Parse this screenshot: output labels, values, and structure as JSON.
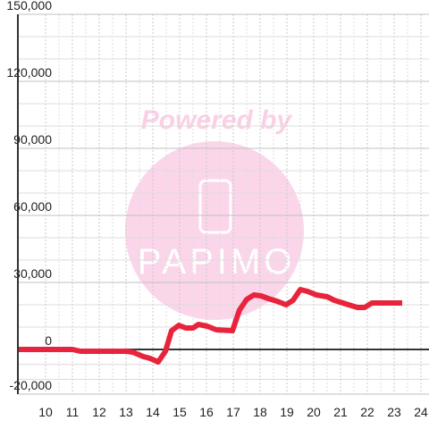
{
  "chart_data": {
    "type": "line",
    "watermark": {
      "title": "Powered by",
      "logo": "PAPIMO"
    },
    "x": [
      9,
      11,
      11.3,
      13,
      13.25,
      13.65,
      13.9,
      14.2,
      14.47,
      14.7,
      14.97,
      15.23,
      15.5,
      15.7,
      16.03,
      16.37,
      16.97,
      17.23,
      17.5,
      17.77,
      18.03,
      18.3,
      18.63,
      18.97,
      19.23,
      19.5,
      19.77,
      20.1,
      20.5,
      20.77,
      21.3,
      21.63,
      21.9,
      22.17,
      23.3
    ],
    "series": [
      {
        "color": "#e8243c",
        "values": [
          0,
          0,
          -800,
          -800,
          -1200,
          -3200,
          -4000,
          -5600,
          -800,
          8400,
          10800,
          9600,
          9600,
          11200,
          10400,
          8800,
          8400,
          17600,
          22400,
          24400,
          24000,
          22800,
          21600,
          20000,
          22000,
          26800,
          26000,
          24400,
          23600,
          22000,
          20000,
          18800,
          18800,
          20800,
          20800
        ]
      }
    ],
    "xlim": [
      9,
      24.3
    ],
    "xticks": [
      10,
      11,
      12,
      13,
      14,
      15,
      16,
      17,
      18,
      19,
      20,
      21,
      22,
      23,
      24
    ],
    "ylim": [
      -20000,
      150000
    ],
    "yticks": [
      {
        "value": -20000,
        "label": "-20,000"
      },
      0,
      {
        "value": 30000,
        "label": "30,000"
      },
      {
        "value": 60000,
        "label": "60,000"
      },
      {
        "value": 90000,
        "label": "90,000"
      },
      {
        "value": 120000,
        "label": "120,000"
      },
      {
        "value": 150000,
        "label": "150,000"
      }
    ],
    "grid": true
  }
}
